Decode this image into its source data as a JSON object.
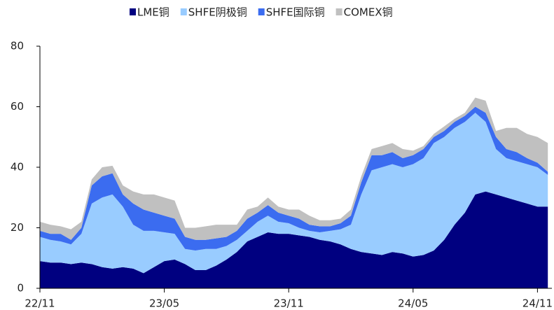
{
  "chart_data": {
    "type": "stacked_area",
    "categories": [
      "22/11",
      null,
      null,
      null,
      null,
      null,
      null,
      null,
      null,
      null,
      null,
      null,
      "23/05",
      null,
      null,
      null,
      null,
      null,
      null,
      null,
      null,
      null,
      null,
      null,
      "23/11",
      null,
      null,
      null,
      null,
      null,
      null,
      null,
      null,
      null,
      null,
      null,
      "24/05",
      null,
      null,
      null,
      null,
      null,
      null,
      null,
      null,
      null,
      null,
      null,
      "24/11",
      null
    ],
    "series": [
      {
        "name": "LME铜",
        "color": "#000080",
        "values": [
          9,
          8.5,
          8.5,
          8,
          8.5,
          8,
          7,
          6.5,
          7,
          6.5,
          5,
          7,
          9,
          9.5,
          8,
          6,
          6,
          7.5,
          9.5,
          12,
          15.5,
          17,
          18.5,
          18,
          18,
          17.5,
          17,
          16,
          15.5,
          14.5,
          13,
          12,
          11.5,
          11,
          12,
          11.5,
          10.5,
          11,
          12.5,
          16,
          21,
          25,
          31,
          32,
          31,
          30,
          29,
          28,
          27,
          27
        ]
      },
      {
        "name": "SHFE阴极铜",
        "color": "#99ccff",
        "values": [
          8,
          7.5,
          7,
          6.5,
          9.5,
          20,
          23,
          24.5,
          20,
          14.5,
          14,
          12,
          9.5,
          8.5,
          5,
          6.5,
          7,
          5.5,
          4.5,
          4,
          3.5,
          5,
          5.5,
          4,
          3.5,
          2.5,
          2,
          2.5,
          3.5,
          5,
          8,
          19,
          27.5,
          29,
          29,
          28.5,
          30.5,
          32,
          35.5,
          34,
          32,
          30,
          27,
          23,
          15,
          13,
          13,
          13,
          13,
          10.5
        ]
      },
      {
        "name": "SHFE国际铜",
        "color": "#3b6cf0",
        "values": [
          2,
          2,
          2.5,
          1.5,
          2,
          6,
          7,
          7,
          4,
          7,
          7,
          6,
          5.5,
          5,
          4,
          3.5,
          3,
          3.5,
          3,
          3,
          4,
          3,
          3.5,
          3,
          2.5,
          3,
          2,
          2,
          1.5,
          2,
          3,
          4,
          5,
          4,
          4,
          3,
          3,
          3,
          2,
          2,
          2,
          2,
          2,
          3,
          4,
          3,
          3,
          2,
          1.5,
          1
        ]
      },
      {
        "name": "COMEX铜",
        "color": "#c0c0c0",
        "values": [
          3,
          3,
          2.5,
          3.5,
          2,
          2,
          3,
          2.5,
          3,
          4,
          5,
          6,
          6,
          6,
          3,
          4,
          4.5,
          4.5,
          4,
          2,
          3,
          2,
          2.5,
          2,
          2,
          3,
          3,
          2,
          2,
          1.5,
          2,
          2,
          2,
          3,
          3,
          3,
          1.5,
          1,
          1,
          1.5,
          1,
          1,
          3,
          4,
          2,
          7,
          8,
          8,
          8.5,
          9.5
        ]
      }
    ],
    "ylim": [
      0,
      80
    ],
    "yticks": [
      0,
      20,
      40,
      60,
      80
    ],
    "legend": "top"
  }
}
